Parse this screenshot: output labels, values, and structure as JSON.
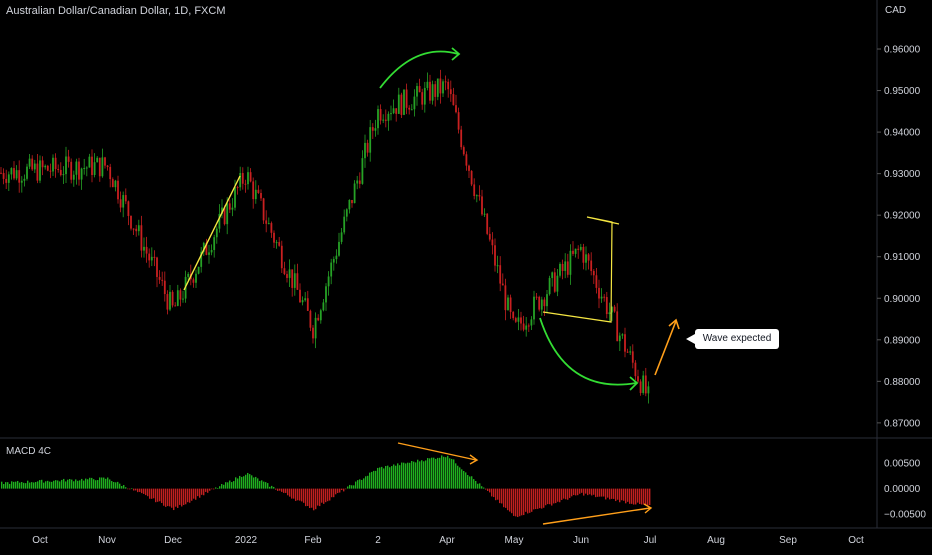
{
  "chart_title": "Australian Dollar/Canadian Dollar, 1D, FXCM",
  "currency_label": "CAD",
  "macd_title": "MACD 4C",
  "annotation": "Wave expected",
  "colors": {
    "up": "#26a226",
    "down": "#c92020",
    "macd_pos": "#20b020",
    "macd_neg": "#c02020",
    "grid": "#2a2e39",
    "axis_text": "#d1d4dc",
    "green_arrow": "#33dd33",
    "orange": "#ff9f1a",
    "yellow": "#f5e642"
  },
  "price_axis": {
    "ticks": [
      "0.96000",
      "0.95000",
      "0.94000",
      "0.93000",
      "0.92000",
      "0.91000",
      "0.90000",
      "0.89000",
      "0.88000",
      "0.87000"
    ],
    "range": [
      0.8666,
      0.9718
    ]
  },
  "macd_axis": {
    "ticks": [
      "0.00500",
      "0.00000",
      "−0.00500"
    ],
    "range": [
      -0.0075,
      0.0095
    ]
  },
  "time_axis": [
    "Oct",
    "Nov",
    "Dec",
    "2022",
    "Feb",
    "2",
    "Apr",
    "May",
    "Jun",
    "Jul",
    "Aug",
    "Sep",
    "Oct"
  ],
  "chart_data": {
    "type": "candlestick",
    "title": "Australian Dollar/Canadian Dollar, 1D, FXCM",
    "ylabel": "CAD",
    "key_points": [
      {
        "time": "Sep",
        "close": 0.93
      },
      {
        "time": "Nov",
        "close": 0.932
      },
      {
        "time": "Dec",
        "close": 0.897
      },
      {
        "time": "2022",
        "close": 0.93
      },
      {
        "time": "Feb",
        "close": 0.893
      },
      {
        "time": "2",
        "close": 0.945
      },
      {
        "time": "Apr",
        "close": 0.951
      },
      {
        "time": "May",
        "close": 0.892
      },
      {
        "time": "Jun",
        "close": 0.912
      },
      {
        "time": "Jul",
        "close": 0.875
      }
    ],
    "macd": {
      "name": "MACD 4C",
      "points": [
        {
          "time": "Sep",
          "value": 0.001
        },
        {
          "time": "Nov",
          "value": 0.002
        },
        {
          "time": "Dec",
          "value": -0.004
        },
        {
          "time": "2022",
          "value": 0.003
        },
        {
          "time": "Feb",
          "value": -0.004
        },
        {
          "time": "2",
          "value": 0.004
        },
        {
          "time": "Apr",
          "value": 0.0065
        },
        {
          "time": "May",
          "value": -0.0055
        },
        {
          "time": "Jun",
          "value": -0.001
        },
        {
          "time": "Jul",
          "value": -0.0035
        }
      ]
    }
  }
}
